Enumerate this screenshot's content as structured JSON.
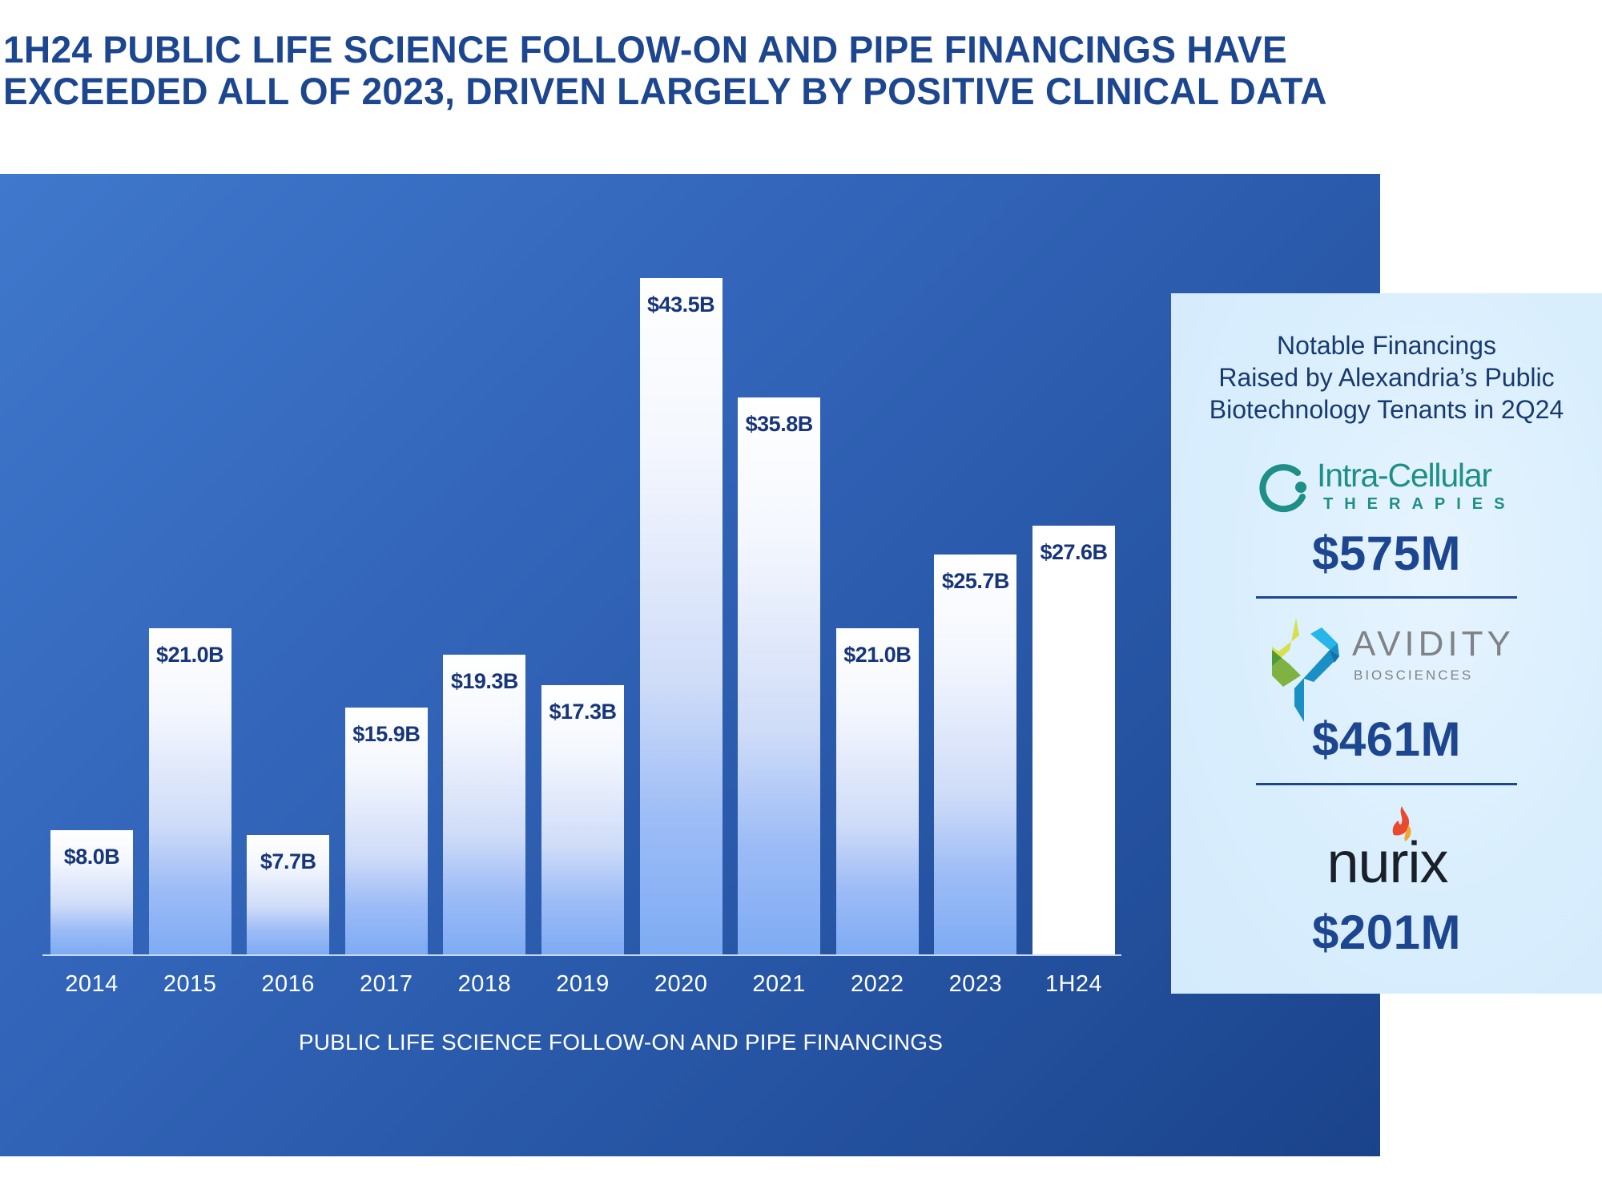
{
  "title": {
    "line1": "1H24 PUBLIC LIFE SCIENCE FOLLOW-ON AND PIPE FINANCINGS HAVE",
    "line2": "EXCEEDED ALL OF 2023, DRIVEN LARGELY BY POSITIVE CLINICAL DATA"
  },
  "colors": {
    "title": "#1d4690",
    "panel_gradient_start": "#3f78cc",
    "panel_gradient_end": "#1a438a",
    "bar_top": "#ffffff",
    "bar_bottom": "#7eabf4",
    "bar_highlight": "#ffffff",
    "bar_label": "#17357a",
    "side_panel": "#dcefff",
    "amount": "#1d4690"
  },
  "chart_data": {
    "type": "bar",
    "title": "",
    "xlabel": "PUBLIC LIFE SCIENCE FOLLOW-ON AND PIPE FINANCINGS",
    "ylabel": "",
    "categories": [
      "2014",
      "2015",
      "2016",
      "2017",
      "2018",
      "2019",
      "2020",
      "2021",
      "2022",
      "2023",
      "1H24"
    ],
    "values": [
      8.0,
      21.0,
      7.7,
      15.9,
      19.3,
      17.3,
      43.5,
      35.8,
      21.0,
      25.7,
      27.6
    ],
    "value_labels": [
      "$8.0B",
      "$21.0B",
      "$7.7B",
      "$15.9B",
      "$19.3B",
      "$17.3B",
      "$43.5B",
      "$35.8B",
      "$21.0B",
      "$25.7B",
      "$27.6B"
    ],
    "units": "USD billions",
    "highlighted_category": "1H24",
    "ylim": [
      0,
      45
    ],
    "grid": false,
    "legend": null
  },
  "side_panel": {
    "heading_line1": "Notable Financings",
    "heading_line2": "Raised by Alexandria’s Public",
    "heading_line3": "Biotechnology Tenants in 2Q24",
    "companies": [
      {
        "name": "Intra-Cellular",
        "subname": "THERAPIES",
        "amount": "$575M",
        "logo_icon": "intra-cellular-logo-icon"
      },
      {
        "name": "AVIDITY",
        "subname": "BIOSCIENCES",
        "amount": "$461M",
        "logo_icon": "avidity-logo-icon"
      },
      {
        "name": "nurix",
        "subname": "",
        "amount": "$201M",
        "logo_icon": "nurix-flame-icon"
      }
    ]
  }
}
